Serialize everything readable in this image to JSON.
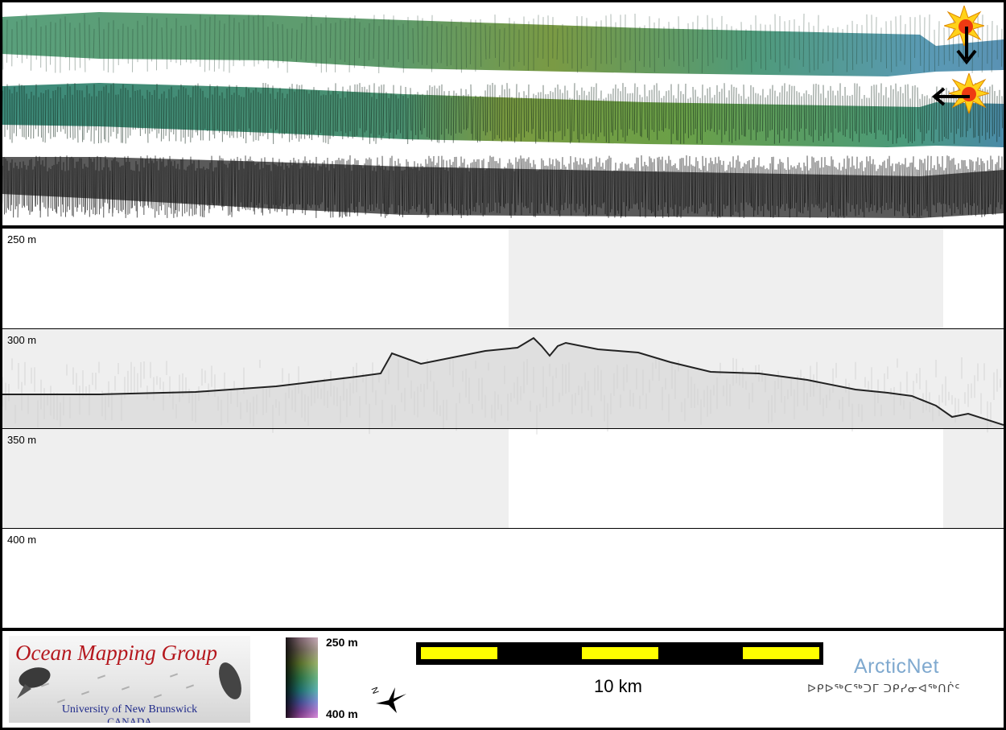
{
  "profile": {
    "depth_labels": [
      "250 m",
      "300 m",
      "350 m",
      "400 m"
    ]
  },
  "legend": {
    "logo": {
      "title": "Ocean Mapping Group",
      "university": "University of New Brunswick",
      "country": "CANADA"
    },
    "colorbar": {
      "top_label": "250 m",
      "bottom_label": "400 m"
    },
    "north_arrow_label": "N",
    "scale": {
      "label": "10 km",
      "segment_color": "#ffff00"
    },
    "arcticnet": {
      "name": "ArcticNet",
      "inuktitut": "ᐅᑭᐅᖅᑕᖅᑐᒥ ᑐᑭᓯᓂᐊᖅᑎᒌᑦ"
    }
  },
  "colors": {
    "bathymetry_green": "#4f9a6e",
    "bathymetry_yellowgreen": "#7f9a3e",
    "bathymetry_teal": "#5a98b0",
    "backscatter": "#3c3c3c",
    "shaded_region": "#efefef",
    "brand_red": "#b5181e",
    "brand_blue": "#1f2a8a",
    "arcticnet_blue": "#7fa9cf"
  },
  "icons": [
    "sun-burst-icon",
    "arrow-down-icon",
    "arrow-left-icon",
    "north-arrow-icon"
  ]
}
